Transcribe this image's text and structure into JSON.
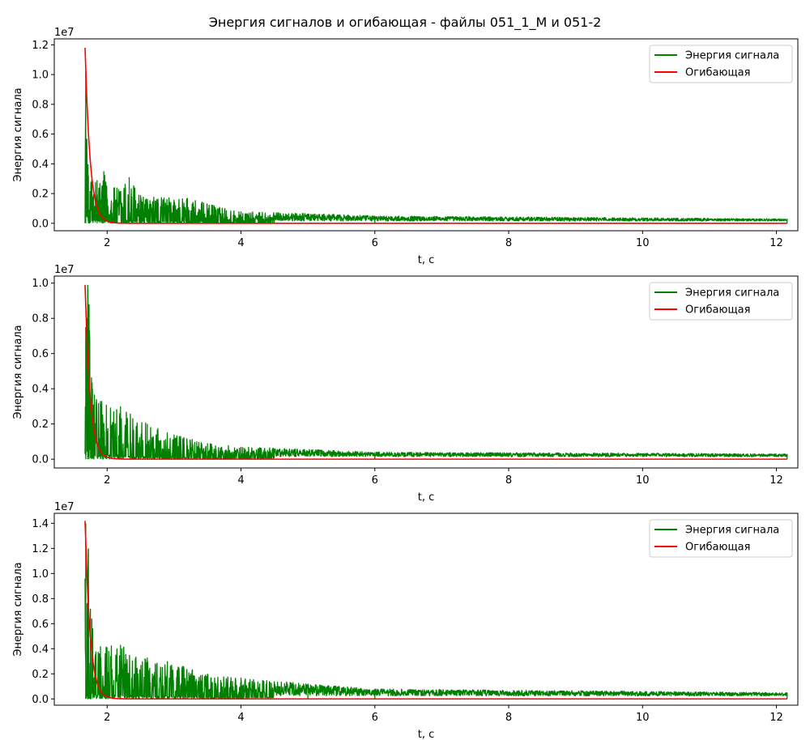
{
  "figure": {
    "title": "Энергия сигналов и огибающая - файлы 051_1_М и 051-2"
  },
  "chart_data": [
    {
      "type": "line",
      "xlabel": "t, c",
      "ylabel": "Энергия сигнала",
      "offset_text": "1e7",
      "xlim": [
        1.21,
        12.32
      ],
      "ylim": [
        -0.05,
        1.24
      ],
      "x_ticks": [
        2,
        4,
        6,
        8,
        10,
        12
      ],
      "x_tick_labels": [
        "2",
        "4",
        "6",
        "8",
        "10",
        "12"
      ],
      "y_ticks": [
        0.0,
        0.2,
        0.4,
        0.6,
        0.8,
        1.0,
        1.2
      ],
      "y_tick_labels": [
        "0.0",
        "0.2",
        "0.4",
        "0.6",
        "0.8",
        "1.0",
        "1.2"
      ],
      "legend_position": "upper right",
      "legend": [
        "Энергия сигнала",
        "Огибающая"
      ],
      "series": [
        {
          "name": "Энергия сигнала",
          "color": "#008000",
          "x_range": [
            1.67,
            12.16
          ],
          "approx_peaks": [
            [
              1.68,
              1.02
            ],
            [
              1.72,
              0.32
            ],
            [
              1.85,
              0.29
            ],
            [
              1.95,
              0.35
            ],
            [
              2.1,
              0.24
            ],
            [
              2.33,
              0.31
            ],
            [
              2.5,
              0.19
            ],
            [
              3.2,
              0.17
            ],
            [
              3.6,
              0.12
            ],
            [
              4.0,
              0.08
            ],
            [
              6.0,
              0.05
            ],
            [
              12.16,
              0.03
            ]
          ],
          "baseline_end": 0.025
        },
        {
          "name": "Огибающая",
          "color": "#ff0000",
          "x_start": 1.67,
          "x_end": 12.16,
          "peak": 1.18,
          "final": 0.0
        }
      ]
    },
    {
      "type": "line",
      "xlabel": "t, c",
      "ylabel": "Энергия сигнала",
      "offset_text": "1e7",
      "xlim": [
        1.21,
        12.32
      ],
      "ylim": [
        -0.05,
        1.04
      ],
      "x_ticks": [
        2,
        4,
        6,
        8,
        10,
        12
      ],
      "x_tick_labels": [
        "2",
        "4",
        "6",
        "8",
        "10",
        "12"
      ],
      "y_ticks": [
        0.0,
        0.2,
        0.4,
        0.6,
        0.8,
        1.0
      ],
      "y_tick_labels": [
        "0.0",
        "0.2",
        "0.4",
        "0.6",
        "0.8",
        "1.0"
      ],
      "legend_position": "upper right",
      "legend": [
        "Энергия сигнала",
        "Огибающая"
      ],
      "series": [
        {
          "name": "Энергия сигнала",
          "color": "#008000",
          "x_range": [
            1.67,
            12.16
          ],
          "approx_peaks": [
            [
              1.68,
              0.75
            ],
            [
              1.71,
              0.99
            ],
            [
              1.73,
              0.88
            ],
            [
              1.78,
              0.4
            ],
            [
              1.9,
              0.33
            ],
            [
              2.2,
              0.3
            ],
            [
              2.6,
              0.2
            ],
            [
              3.0,
              0.14
            ],
            [
              3.5,
              0.09
            ],
            [
              4.0,
              0.07
            ],
            [
              6.0,
              0.04
            ],
            [
              12.16,
              0.03
            ]
          ],
          "baseline_end": 0.023
        },
        {
          "name": "Огибающая",
          "color": "#ff0000",
          "x_start": 1.67,
          "x_end": 12.16,
          "peak": 0.99,
          "final": 0.0
        }
      ]
    },
    {
      "type": "line",
      "xlabel": "t, c",
      "ylabel": "Энергия сигнала",
      "offset_text": "1e7",
      "xlim": [
        1.21,
        12.32
      ],
      "ylim": [
        -0.05,
        1.48
      ],
      "x_ticks": [
        2,
        4,
        6,
        8,
        10,
        12
      ],
      "x_tick_labels": [
        "2",
        "4",
        "6",
        "8",
        "10",
        "12"
      ],
      "y_ticks": [
        0.0,
        0.2,
        0.4,
        0.6,
        0.8,
        1.0,
        1.2,
        1.4
      ],
      "y_tick_labels": [
        "0.0",
        "0.2",
        "0.4",
        "0.6",
        "0.8",
        "1.0",
        "1.2",
        "1.4"
      ],
      "legend_position": "upper right",
      "legend": [
        "Энергия сигнала",
        "Огибающая"
      ],
      "series": [
        {
          "name": "Энергия сигнала",
          "color": "#008000",
          "x_range": [
            1.67,
            12.16
          ],
          "approx_peaks": [
            [
              1.68,
              1.4
            ],
            [
              1.72,
              1.2
            ],
            [
              1.75,
              0.72
            ],
            [
              1.9,
              0.42
            ],
            [
              2.2,
              0.43
            ],
            [
              2.6,
              0.33
            ],
            [
              2.9,
              0.3
            ],
            [
              3.5,
              0.2
            ],
            [
              4.0,
              0.17
            ],
            [
              5.0,
              0.12
            ],
            [
              6.0,
              0.08
            ],
            [
              12.16,
              0.05
            ]
          ],
          "baseline_end": 0.04
        },
        {
          "name": "Огибающая",
          "color": "#ff0000",
          "x_start": 1.67,
          "x_end": 12.16,
          "peak": 1.42,
          "final": 0.0
        }
      ]
    }
  ]
}
